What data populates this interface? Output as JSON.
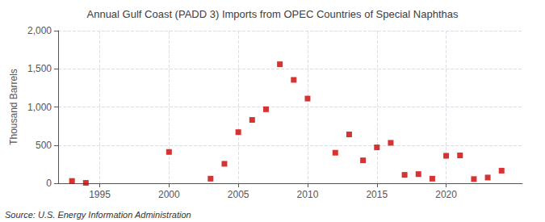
{
  "chart_data": {
    "type": "scatter",
    "title": "Annual Gulf Coast (PADD 3) Imports from OPEC Countries of Special Naphthas",
    "ylabel": "Thousand Barrels",
    "annotation": "Source: U.S. Energy Information Administration",
    "x": [
      1993,
      1994,
      2000,
      2003,
      2004,
      2005,
      2006,
      2007,
      2008,
      2009,
      2010,
      2012,
      2013,
      2014,
      2015,
      2016,
      2017,
      2018,
      2019,
      2020,
      2021,
      2022,
      2023,
      2024
    ],
    "values": [
      30,
      5,
      410,
      60,
      255,
      670,
      830,
      970,
      1560,
      1355,
      1110,
      400,
      640,
      300,
      470,
      530,
      110,
      120,
      60,
      360,
      365,
      55,
      75,
      165
    ],
    "color": "#cc0000",
    "marker": "square",
    "xlim": [
      1992,
      2025.5
    ],
    "xticks": [
      1995,
      2000,
      2005,
      2010,
      2015,
      2020
    ],
    "ylim": [
      0,
      2000
    ],
    "yticks": [
      0,
      500,
      {
        "value": 1000,
        "label": "1,000"
      },
      {
        "value": 1500,
        "label": "1,500"
      },
      {
        "value": 2000,
        "label": "2,000"
      }
    ],
    "grid": true
  }
}
